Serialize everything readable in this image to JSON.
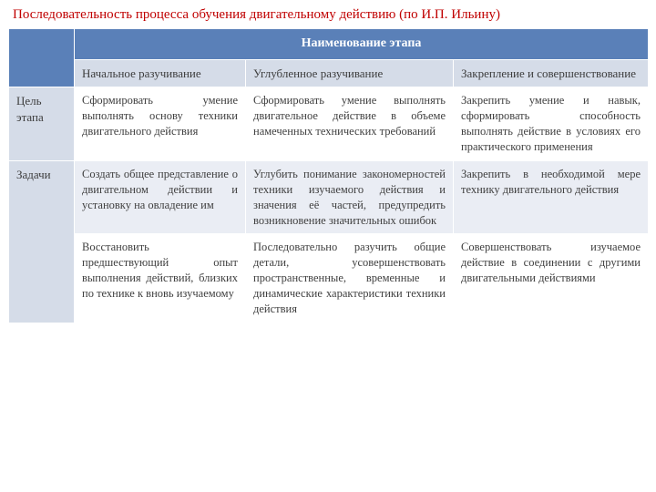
{
  "title": "Последовательность процесса обучения двигательному действию (по И.П. Ильину)",
  "header": "Наименование этапа",
  "stages": {
    "s1": "Начальное разучивание",
    "s2": "Углубленное разучивание",
    "s3": "Закрепление и совершенствование"
  },
  "rows": {
    "goal_label": "Цель этапа",
    "goal": {
      "c1": "Сформировать умение выполнять основу техники двигательного действия",
      "c2": "Сформировать умение выполнять двигательное действие в объеме намеченных технических требований",
      "c3": "Закрепить умение и навык, сформировать способность выполнять действие в условиях его практического применения"
    },
    "tasks_label": "Задачи",
    "task1": {
      "c1": "Создать общее представление о двигательном действии и установку на овладение им",
      "c2": "Углубить понимание закономерностей техники изучаемого действия и значения её частей, предупредить возникновение значительных ошибок",
      "c3": "Закрепить в необходимой мере технику двигательного действия"
    },
    "task2": {
      "c1": "Восстановить предшествующий опыт выполнения действий, близких по технике к вновь изучаемому",
      "c2": "Последовательно разучить общие детали, усовершенствовать пространственные, временные и динамические характеристики техники действия",
      "c3": "Совершенствовать изучаемое действие в соединении с другими двигательными действиями"
    }
  },
  "colors": {
    "title": "#c00000",
    "header_bg": "#5a80b8",
    "band_bg": "#d5dce8",
    "alt_bg": "#eaedf4",
    "text": "#404040"
  }
}
